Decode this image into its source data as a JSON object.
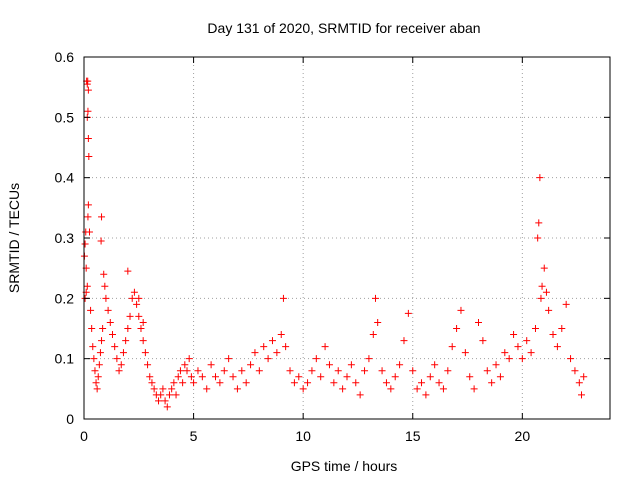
{
  "chart_data": {
    "type": "scatter",
    "title": "Day 131 of 2020, SRMTID for receiver aban",
    "xlabel": "GPS time / hours",
    "ylabel": "SRMTID / TECUs",
    "xlim": [
      0,
      24
    ],
    "ylim": [
      0,
      0.6
    ],
    "xticks": [
      0,
      5,
      10,
      15,
      20
    ],
    "yticks": [
      0,
      0.1,
      0.2,
      0.3,
      0.4,
      0.5,
      0.6
    ],
    "xtick_labels": [
      "0",
      "5",
      "10",
      "15",
      "20"
    ],
    "ytick_labels": [
      "0",
      "0.1",
      "0.2",
      "0.3",
      "0.4",
      "0.5",
      "0.6"
    ],
    "grid": true,
    "marker": "+",
    "color": "#ff0000",
    "series": [
      {
        "name": "SRMTID",
        "points": [
          [
            0.02,
            0.27
          ],
          [
            0.05,
            0.29
          ],
          [
            0.08,
            0.31
          ],
          [
            0.1,
            0.25
          ],
          [
            0.12,
            0.56
          ],
          [
            0.15,
            0.555
          ],
          [
            0.17,
            0.56
          ],
          [
            0.2,
            0.545
          ],
          [
            0.15,
            0.5
          ],
          [
            0.18,
            0.51
          ],
          [
            0.2,
            0.465
          ],
          [
            0.22,
            0.435
          ],
          [
            0.2,
            0.355
          ],
          [
            0.18,
            0.335
          ],
          [
            0.25,
            0.31
          ],
          [
            0.05,
            0.2
          ],
          [
            0.1,
            0.21
          ],
          [
            0.15,
            0.22
          ],
          [
            0.3,
            0.18
          ],
          [
            0.35,
            0.15
          ],
          [
            0.4,
            0.12
          ],
          [
            0.45,
            0.1
          ],
          [
            0.5,
            0.08
          ],
          [
            0.55,
            0.06
          ],
          [
            0.6,
            0.05
          ],
          [
            0.65,
            0.07
          ],
          [
            0.7,
            0.09
          ],
          [
            0.75,
            0.11
          ],
          [
            0.8,
            0.13
          ],
          [
            0.85,
            0.15
          ],
          [
            0.8,
            0.335
          ],
          [
            0.78,
            0.295
          ],
          [
            0.9,
            0.24
          ],
          [
            0.95,
            0.22
          ],
          [
            1.0,
            0.2
          ],
          [
            1.1,
            0.18
          ],
          [
            1.2,
            0.16
          ],
          [
            1.3,
            0.14
          ],
          [
            1.4,
            0.12
          ],
          [
            1.5,
            0.1
          ],
          [
            1.6,
            0.08
          ],
          [
            1.7,
            0.09
          ],
          [
            1.8,
            0.11
          ],
          [
            1.9,
            0.13
          ],
          [
            2.0,
            0.15
          ],
          [
            2.1,
            0.17
          ],
          [
            2.2,
            0.2
          ],
          [
            2.3,
            0.21
          ],
          [
            2.4,
            0.19
          ],
          [
            2.5,
            0.17
          ],
          [
            2.6,
            0.15
          ],
          [
            2.7,
            0.13
          ],
          [
            2.8,
            0.11
          ],
          [
            2.9,
            0.09
          ],
          [
            2.0,
            0.245
          ],
          [
            2.5,
            0.2
          ],
          [
            2.7,
            0.16
          ],
          [
            3.0,
            0.07
          ],
          [
            3.1,
            0.06
          ],
          [
            3.2,
            0.05
          ],
          [
            3.3,
            0.04
          ],
          [
            3.4,
            0.03
          ],
          [
            3.5,
            0.04
          ],
          [
            3.6,
            0.05
          ],
          [
            3.7,
            0.03
          ],
          [
            3.8,
            0.02
          ],
          [
            3.9,
            0.04
          ],
          [
            4.0,
            0.05
          ],
          [
            4.1,
            0.06
          ],
          [
            4.2,
            0.04
          ],
          [
            4.3,
            0.07
          ],
          [
            4.4,
            0.08
          ],
          [
            4.5,
            0.06
          ],
          [
            4.6,
            0.09
          ],
          [
            4.7,
            0.08
          ],
          [
            4.8,
            0.1
          ],
          [
            4.9,
            0.07
          ],
          [
            5.0,
            0.06
          ],
          [
            5.2,
            0.08
          ],
          [
            5.4,
            0.07
          ],
          [
            5.6,
            0.05
          ],
          [
            5.8,
            0.09
          ],
          [
            6.0,
            0.07
          ],
          [
            6.2,
            0.06
          ],
          [
            6.4,
            0.08
          ],
          [
            6.6,
            0.1
          ],
          [
            6.8,
            0.07
          ],
          [
            7.0,
            0.05
          ],
          [
            7.2,
            0.08
          ],
          [
            7.4,
            0.06
          ],
          [
            7.6,
            0.09
          ],
          [
            7.8,
            0.11
          ],
          [
            8.0,
            0.08
          ],
          [
            8.2,
            0.12
          ],
          [
            8.4,
            0.1
          ],
          [
            8.6,
            0.13
          ],
          [
            8.8,
            0.11
          ],
          [
            9.0,
            0.14
          ],
          [
            9.1,
            0.2
          ],
          [
            9.2,
            0.12
          ],
          [
            9.4,
            0.08
          ],
          [
            9.6,
            0.06
          ],
          [
            9.8,
            0.07
          ],
          [
            10.0,
            0.05
          ],
          [
            10.2,
            0.06
          ],
          [
            10.4,
            0.08
          ],
          [
            10.6,
            0.1
          ],
          [
            10.8,
            0.07
          ],
          [
            11.0,
            0.12
          ],
          [
            11.2,
            0.09
          ],
          [
            11.4,
            0.06
          ],
          [
            11.6,
            0.08
          ],
          [
            11.8,
            0.05
          ],
          [
            12.0,
            0.07
          ],
          [
            12.2,
            0.09
          ],
          [
            12.4,
            0.06
          ],
          [
            12.6,
            0.04
          ],
          [
            12.8,
            0.08
          ],
          [
            13.0,
            0.1
          ],
          [
            13.2,
            0.14
          ],
          [
            13.3,
            0.2
          ],
          [
            13.4,
            0.16
          ],
          [
            13.6,
            0.08
          ],
          [
            13.8,
            0.06
          ],
          [
            14.0,
            0.05
          ],
          [
            14.2,
            0.07
          ],
          [
            14.4,
            0.09
          ],
          [
            14.6,
            0.13
          ],
          [
            14.8,
            0.175
          ],
          [
            15.0,
            0.08
          ],
          [
            15.2,
            0.05
          ],
          [
            15.4,
            0.06
          ],
          [
            15.6,
            0.04
          ],
          [
            15.8,
            0.07
          ],
          [
            16.0,
            0.09
          ],
          [
            16.2,
            0.06
          ],
          [
            16.4,
            0.05
          ],
          [
            16.6,
            0.08
          ],
          [
            16.8,
            0.12
          ],
          [
            17.0,
            0.15
          ],
          [
            17.2,
            0.18
          ],
          [
            17.4,
            0.11
          ],
          [
            17.6,
            0.07
          ],
          [
            17.8,
            0.05
          ],
          [
            18.0,
            0.16
          ],
          [
            18.2,
            0.13
          ],
          [
            18.4,
            0.08
          ],
          [
            18.6,
            0.06
          ],
          [
            18.8,
            0.09
          ],
          [
            19.0,
            0.07
          ],
          [
            19.2,
            0.11
          ],
          [
            19.4,
            0.1
          ],
          [
            19.6,
            0.14
          ],
          [
            19.8,
            0.12
          ],
          [
            20.0,
            0.1
          ],
          [
            20.2,
            0.13
          ],
          [
            20.4,
            0.11
          ],
          [
            20.6,
            0.15
          ],
          [
            20.7,
            0.3
          ],
          [
            20.75,
            0.325
          ],
          [
            20.8,
            0.4
          ],
          [
            20.85,
            0.2
          ],
          [
            20.9,
            0.22
          ],
          [
            21.0,
            0.25
          ],
          [
            21.1,
            0.21
          ],
          [
            21.2,
            0.18
          ],
          [
            21.4,
            0.14
          ],
          [
            21.6,
            0.12
          ],
          [
            21.8,
            0.15
          ],
          [
            22.0,
            0.19
          ],
          [
            22.2,
            0.1
          ],
          [
            22.4,
            0.08
          ],
          [
            22.6,
            0.06
          ],
          [
            22.7,
            0.04
          ],
          [
            22.8,
            0.07
          ]
        ]
      }
    ]
  }
}
